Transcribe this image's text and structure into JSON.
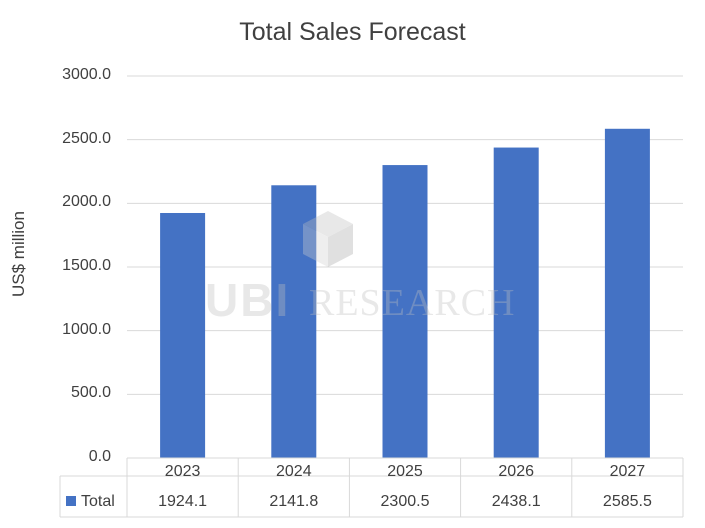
{
  "chart_data": {
    "type": "bar",
    "title": "Total Sales Forecast",
    "xlabel": "",
    "ylabel": "US$ million",
    "categories": [
      "2023",
      "2024",
      "2025",
      "2026",
      "2027"
    ],
    "series": [
      {
        "name": "Total",
        "values": [
          1924.1,
          2141.8,
          2300.5,
          2438.1,
          2585.5
        ],
        "value_labels": [
          "1924.1",
          "2141.8",
          "2300.5",
          "2438.1",
          "2585.5"
        ],
        "color": "#4472c4"
      }
    ],
    "ylim": [
      0,
      3000
    ],
    "yticks": [
      "0.0",
      "500.0",
      "1000.0",
      "1500.0",
      "2000.0",
      "2500.0",
      "3000.0"
    ],
    "grid": true,
    "legend": "data-table-left",
    "data_table": true
  },
  "watermark": {
    "logo": "UBI",
    "text": "RESEARCH"
  },
  "colors": {
    "bar": "#4472c4",
    "grid": "#d9d9d9",
    "text": "#404040"
  }
}
